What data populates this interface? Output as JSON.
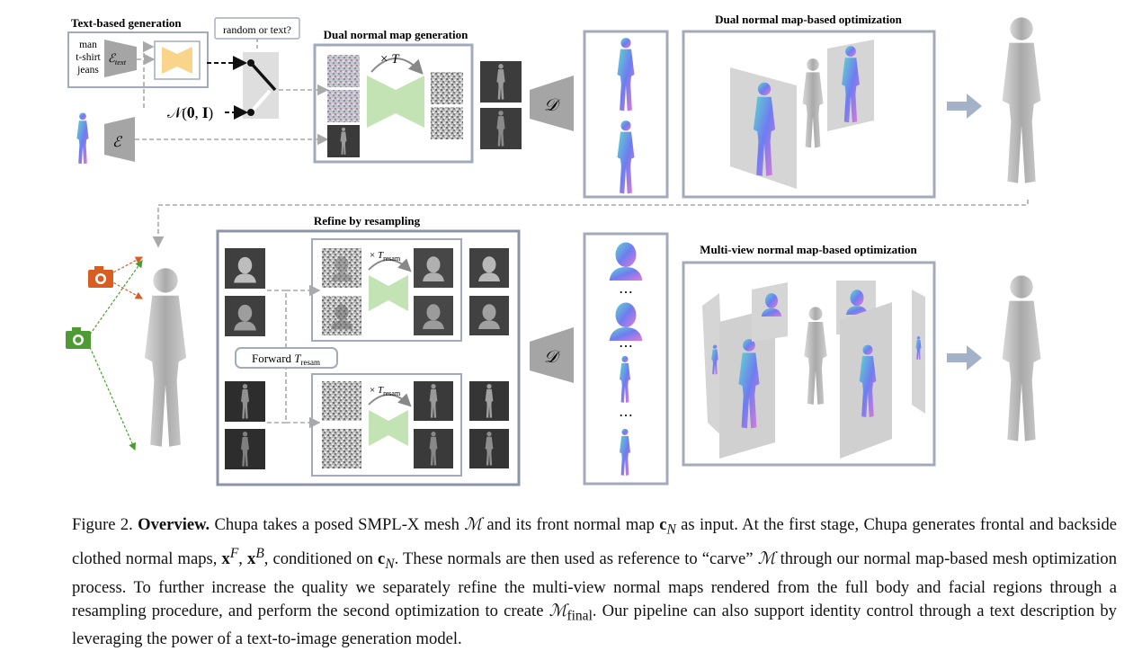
{
  "figure": {
    "text_gen": {
      "title": "Text-based generation",
      "prompt_lines": [
        "man",
        "t-shirt",
        "jeans"
      ],
      "encoder_label": "ℰ",
      "encoder_sub": "text"
    },
    "image_encoder_label": "ℰ",
    "switch_label": "random or text?",
    "noise_label": "𝒩(𝟎, 𝐈)",
    "dual_gen": {
      "title": "Dual normal map generation",
      "steps_prefix": "× ",
      "steps_symbol": "T"
    },
    "decoder_label": "𝒟",
    "dual_opt": {
      "title": "Dual normal map-based optimization"
    },
    "refine": {
      "title": "Refine by resampling",
      "steps_prefix": "× ",
      "steps_symbol": "T",
      "steps_sub": "resam",
      "forward_prefix": "Forward ",
      "forward_symbol": "T",
      "forward_sub": "resam"
    },
    "ellipsis": "⋯",
    "multiview": {
      "title": "Multi-view normal map-based optimization"
    },
    "colors": {
      "frame": "#a3abbb",
      "refine_frame": "#8c95a8",
      "latent": "#fbd48c",
      "diffusion": "#c4e3b4",
      "decoder": "#a5a5a5",
      "arrow": "#a4b2c9",
      "camera_orange": "#d85d20",
      "camera_green": "#4e9a35",
      "normal_blue": "#6f7cf0",
      "normal_pink": "#e47ad6",
      "normal_cyan": "#5ed6d0",
      "mesh": "#b5b5b5"
    }
  },
  "caption": {
    "label": "Figure 2.",
    "heading": "Overview.",
    "s1": " Chupa takes a posed SMPL-X mesh ",
    "m1": "ℳ",
    "s2": " and its front normal map ",
    "m2": "c",
    "m2sub": "N",
    "s3": " as input. At the first stage, Chupa generates frontal and backside clothed normal maps, ",
    "m3": "x",
    "m3sup": "F",
    "s4": ", ",
    "m4": "x",
    "m4sup": "B",
    "s5": ", conditioned on ",
    "m5": "c",
    "m5sub": "N",
    "s6": ". These normals are then used as reference to “carve” ",
    "m6": "ℳ",
    "s7": " through our normal map-based mesh optimization process. To further increase the quality we separately refine the multi-view normal maps rendered from the full body and facial regions through a resampling procedure, and perform the second optimization to create ",
    "m7": "ℳ",
    "m7sub": "final",
    "s8": ". Our pipeline can also support identity control through a text description by leveraging the power of a text-to-image generation model."
  }
}
